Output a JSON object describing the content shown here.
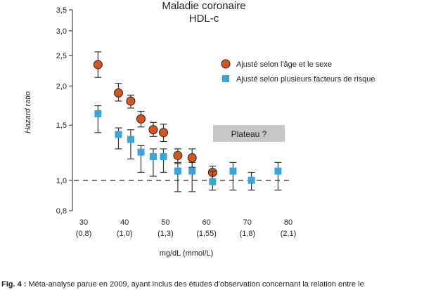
{
  "chart_data": {
    "type": "scatter",
    "title": "Maladie coronaire",
    "subtitle": "HDL-c",
    "ylabel": "Hazard ratio",
    "xlabel": "mg/dL (mmol/L)",
    "xlim": [
      30,
      80
    ],
    "ylim": [
      0.8,
      3.5
    ],
    "y_scale": "log",
    "yticks": [
      "3,5",
      "3,0",
      "2,5",
      "2,0",
      "1,5",
      "1,0",
      "0,8"
    ],
    "ytick_values": [
      3.5,
      3.0,
      2.5,
      2.0,
      1.5,
      1.0,
      0.8
    ],
    "xticks": [
      {
        "value": 30,
        "label": "30",
        "sub": "(0,8)"
      },
      {
        "value": 40,
        "label": "40",
        "sub": "(1,0)"
      },
      {
        "value": 50,
        "label": "50",
        "sub": "(1,3)"
      },
      {
        "value": 60,
        "label": "60",
        "sub": "(1,55)"
      },
      {
        "value": 70,
        "label": "70",
        "sub": "(1,8)"
      },
      {
        "value": 80,
        "label": "80",
        "sub": "(2,1)"
      }
    ],
    "reference_line": 1.0,
    "annotation": "Plateau ?",
    "legend_position": "top-right",
    "series": [
      {
        "name": "Ajusté selon l'âge et le sexe",
        "marker": "circle",
        "color": "#d9541e",
        "points": [
          {
            "x": 33.5,
            "y": 2.34,
            "lo": 2.13,
            "hi": 2.57
          },
          {
            "x": 38.5,
            "y": 1.9,
            "lo": 1.79,
            "hi": 2.04
          },
          {
            "x": 41.5,
            "y": 1.79,
            "lo": 1.7,
            "hi": 1.87
          },
          {
            "x": 44.0,
            "y": 1.57,
            "lo": 1.48,
            "hi": 1.66
          },
          {
            "x": 47.0,
            "y": 1.45,
            "lo": 1.38,
            "hi": 1.53
          },
          {
            "x": 49.5,
            "y": 1.42,
            "lo": 1.33,
            "hi": 1.51
          },
          {
            "x": 53.0,
            "y": 1.2,
            "lo": 1.13,
            "hi": 1.26
          },
          {
            "x": 56.5,
            "y": 1.18,
            "lo": 1.1,
            "hi": 1.26
          },
          {
            "x": 61.5,
            "y": 1.06,
            "lo": 0.99,
            "hi": 1.11
          }
        ]
      },
      {
        "name": "Ajusté selon plusieurs facteurs de risque",
        "marker": "square",
        "color": "#37a6db",
        "points": [
          {
            "x": 33.5,
            "y": 1.63,
            "lo": 1.42,
            "hi": 1.73
          },
          {
            "x": 38.5,
            "y": 1.4,
            "lo": 1.26,
            "hi": 1.47
          },
          {
            "x": 41.5,
            "y": 1.35,
            "lo": 1.17,
            "hi": 1.45
          },
          {
            "x": 44.0,
            "y": 1.23,
            "lo": 1.06,
            "hi": 1.29
          },
          {
            "x": 47.0,
            "y": 1.19,
            "lo": 1.03,
            "hi": 1.26
          },
          {
            "x": 49.5,
            "y": 1.19,
            "lo": 1.06,
            "hi": 1.26
          },
          {
            "x": 53.0,
            "y": 1.07,
            "lo": 0.92,
            "hi": 1.14
          },
          {
            "x": 56.5,
            "y": 1.07,
            "lo": 0.92,
            "hi": 1.14
          },
          {
            "x": 61.5,
            "y": 0.99,
            "lo": 0.93,
            "hi": 1.07
          },
          {
            "x": 66.5,
            "y": 1.07,
            "lo": 0.93,
            "hi": 1.14
          },
          {
            "x": 71.0,
            "y": 1.0,
            "lo": 0.93,
            "hi": 1.06
          },
          {
            "x": 77.5,
            "y": 1.07,
            "lo": 0.93,
            "hi": 1.14
          }
        ]
      }
    ]
  },
  "caption": {
    "bold": "Fig. 4 :",
    "text": " Méta-analyse parue en 2009, ayant inclus des études d'observation concernant la relation entre le"
  }
}
